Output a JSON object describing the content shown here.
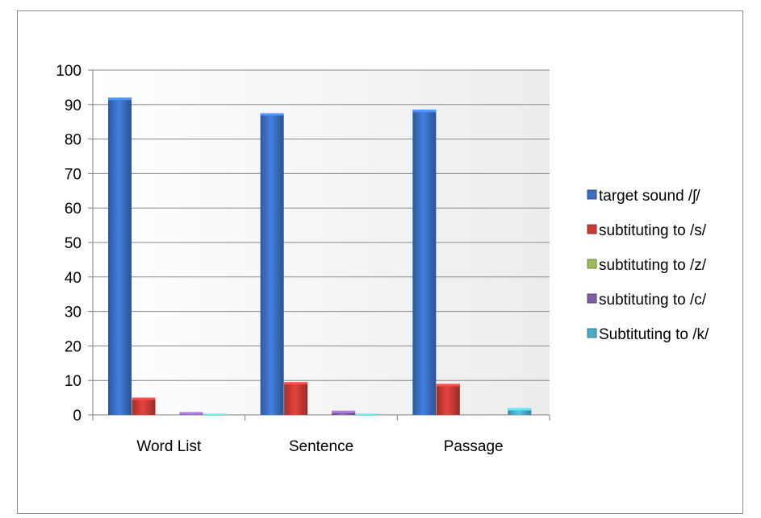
{
  "chart_data": {
    "type": "bar",
    "categories": [
      "Word List",
      "Sentence",
      "Passage"
    ],
    "series": [
      {
        "name": "target sound /ʃ/",
        "color": "#3a6fc4",
        "values": [
          92,
          87.5,
          88.5
        ]
      },
      {
        "name": "subtituting to /s/",
        "color": "#c93a35",
        "values": [
          5,
          9.5,
          9
        ]
      },
      {
        "name": "subtituting to /z/",
        "color": "#9bbb59",
        "values": [
          0,
          0,
          0
        ]
      },
      {
        "name": "subtituting to /c/",
        "color": "#7e5ea4",
        "values": [
          0.8,
          1.2,
          0
        ]
      },
      {
        "name": "Subtituting to /k/",
        "color": "#4bacc6",
        "values": [
          0.3,
          0.3,
          2
        ]
      }
    ],
    "ylim": [
      0,
      100
    ],
    "yticks": [
      0,
      10,
      20,
      30,
      40,
      50,
      60,
      70,
      80,
      90,
      100
    ],
    "grid": true,
    "legend_position": "right"
  }
}
